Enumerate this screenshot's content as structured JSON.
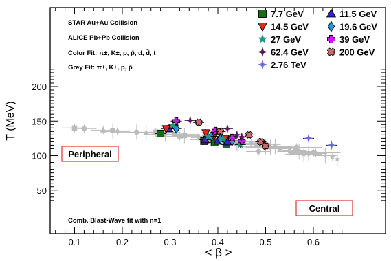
{
  "chart_data": {
    "type": "scatter",
    "xlabel": "< β >",
    "ylabel": "T (MeV)",
    "xlim": [
      0.0,
      0.67
    ],
    "ylim": [
      30,
      230
    ],
    "x_ticks": [
      0.1,
      0.2,
      0.3,
      0.4,
      0.5,
      0.6
    ],
    "y_ticks": [
      50,
      100,
      150,
      200
    ],
    "x_tick_labels": [
      "0.1",
      "0.2",
      "0.3",
      "0.4",
      "0.5",
      "0.6"
    ],
    "y_tick_labels": [
      "50",
      "100",
      "150",
      "200"
    ],
    "grid": false,
    "legend_position": "top-right",
    "annotations": {
      "star": "STAR Au+Au Collision",
      "alice": "ALICE Pb+Pb Collision",
      "color_fit": "Color Fit: π±, K±, p, p̄, d, d̄, t",
      "grey_fit": "Grey Fit: π±, K±, p, p̄",
      "blast_wave": "Comb. Blast-Wave fit with n=1",
      "peripheral": "Peripheral",
      "central": "Central"
    },
    "colors": {
      "7.7 GeV": "#1a6b1a",
      "11.5 GeV": "#3a20d0",
      "14.5 GeV": "#e8251a",
      "19.6 GeV": "#2299dd",
      "27 GeV": "#1a9a8a",
      "39 GeV": "#c020e0",
      "62.4 GeV": "#5a1a5a",
      "200 GeV": "#c86e6e",
      "2.76 TeV": "#6a6ae8",
      "grey": "#bbbbbb",
      "box_border": "#e03030"
    },
    "series": [
      {
        "name": "7.7 GeV",
        "marker": "square",
        "x": [
          0.28,
          0.371,
          0.393,
          0.418
        ],
        "y": [
          132,
          121,
          119,
          116
        ]
      },
      {
        "name": "11.5 GeV",
        "marker": "triangle-up",
        "x": [
          0.298,
          0.373,
          0.4,
          0.42
        ],
        "y": [
          139,
          123,
          121,
          120
        ]
      },
      {
        "name": "14.5 GeV",
        "marker": "triangle-down",
        "x": [
          0.292,
          0.375,
          0.392,
          0.415
        ],
        "y": [
          139,
          133,
          128,
          125
        ]
      },
      {
        "name": "19.6 GeV",
        "marker": "diamond",
        "x": [
          0.313,
          0.386,
          0.405,
          0.43
        ],
        "y": [
          139,
          128,
          124,
          121
        ]
      },
      {
        "name": "27 GeV",
        "marker": "star",
        "x": [
          0.306,
          0.38,
          0.41,
          0.447
        ],
        "y": [
          144,
          128,
          124,
          116
        ]
      },
      {
        "name": "39 GeV",
        "marker": "cross",
        "x": [
          0.313,
          0.395,
          0.43,
          0.45
        ],
        "y": [
          150,
          136,
          126,
          121
        ]
      },
      {
        "name": "62.4 GeV",
        "marker": "star4",
        "x": [
          0.342,
          0.42,
          0.44,
          0.45
        ],
        "y": [
          151,
          139,
          130,
          127
        ]
      },
      {
        "name": "200 GeV",
        "marker": "x",
        "x": [
          0.36,
          0.405,
          0.465,
          0.49,
          0.5
        ],
        "y": [
          148,
          135,
          130,
          120,
          114
        ]
      },
      {
        "name": "2.76 TeV",
        "marker": "star4",
        "x": [
          0.59,
          0.638
        ],
        "y": [
          125,
          115
        ]
      }
    ],
    "grey_series": [
      {
        "marker": "square",
        "x": [
          0.1,
          0.18,
          0.27,
          0.33,
          0.38,
          0.44
        ],
        "y": [
          140,
          136,
          134,
          129,
          123,
          117
        ]
      },
      {
        "marker": "circle",
        "x": [
          0.12,
          0.23,
          0.31,
          0.37,
          0.42,
          0.48,
          0.53,
          0.57,
          0.6
        ],
        "y": [
          139,
          134,
          131,
          126,
          122,
          116,
          110,
          106,
          104
        ]
      },
      {
        "marker": "triangle-up",
        "x": [
          0.16,
          0.25,
          0.32,
          0.39,
          0.45,
          0.5,
          0.55
        ],
        "y": [
          137,
          133,
          128,
          124,
          120,
          113,
          108
        ]
      },
      {
        "marker": "diamond",
        "x": [
          0.19,
          0.29,
          0.36,
          0.41,
          0.47,
          0.51,
          0.56,
          0.59
        ],
        "y": [
          135,
          131,
          127,
          123,
          118,
          112,
          107,
          103
        ]
      },
      {
        "marker": "star",
        "x": [
          0.55,
          0.58,
          0.605,
          0.625,
          0.64,
          0.65
        ],
        "y": [
          106,
          102,
          104,
          100,
          98,
          95
        ]
      },
      {
        "marker": "cross",
        "x": [
          0.485,
          0.52,
          0.565
        ],
        "y": [
          106,
          113,
          112
        ]
      }
    ]
  }
}
